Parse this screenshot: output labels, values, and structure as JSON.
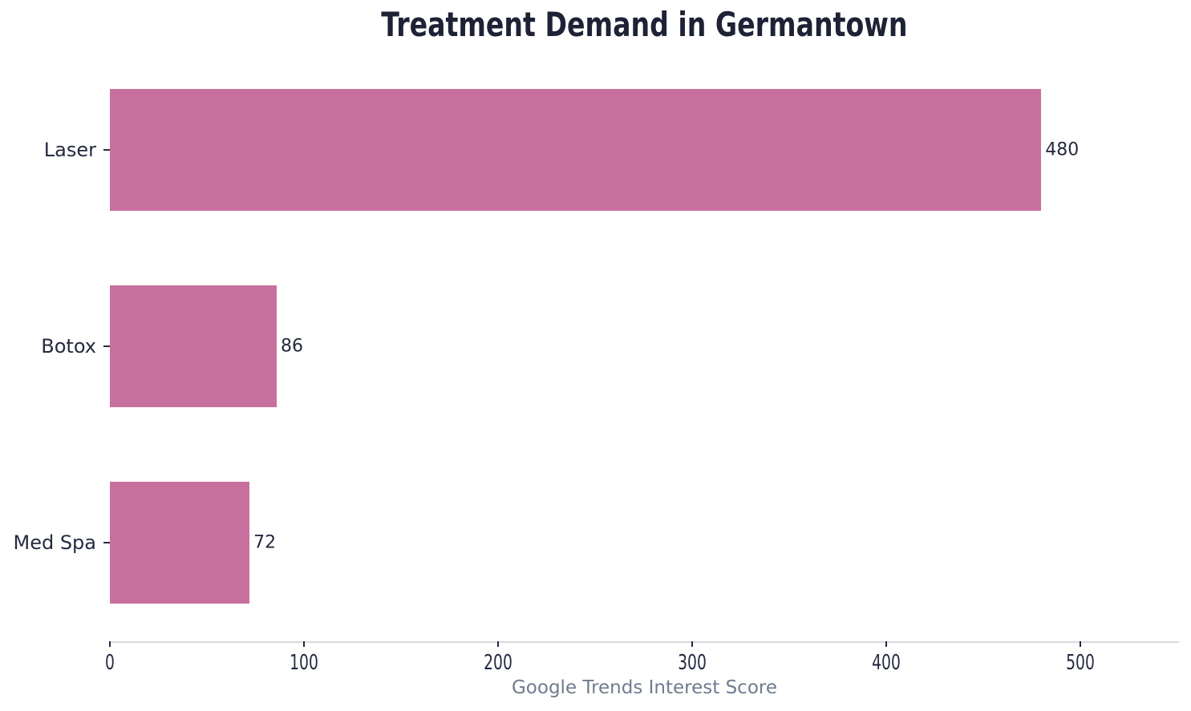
{
  "chart_data": {
    "type": "bar",
    "orientation": "horizontal",
    "title": "Treatment Demand in Germantown",
    "categories": [
      "Laser",
      "Botox",
      "Med Spa"
    ],
    "values": [
      480,
      86,
      72
    ],
    "value_labels": [
      "480",
      "86",
      "72"
    ],
    "xlabel": "Google Trends Interest Score",
    "ylabel": "",
    "xticks": [
      0,
      100,
      200,
      300,
      400,
      500
    ],
    "xtick_labels": [
      "0",
      "100",
      "200",
      "300",
      "400",
      "500"
    ],
    "xlim": [
      0,
      551
    ],
    "grid": false,
    "legend": "none",
    "colors": {
      "bar": "#c7709d",
      "title_text": "#1e2235",
      "tick_text": "#252a40",
      "axis_label_text": "#707b8e",
      "axis_line": "#d8d9de",
      "background": "#ffffff"
    }
  }
}
